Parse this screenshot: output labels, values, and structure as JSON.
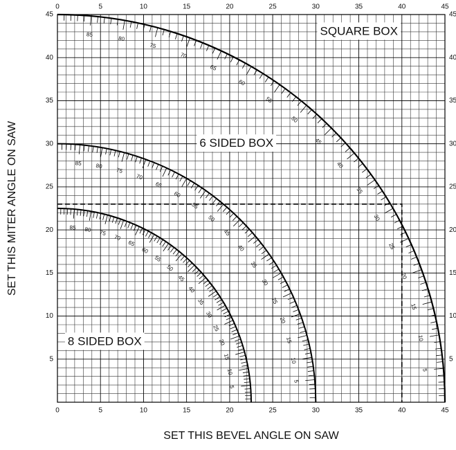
{
  "chart_data": {
    "type": "arc",
    "xlabel": "SET THIS BEVEL ANGLE ON SAW",
    "ylabel": "SET THIS MITER ANGLE ON SAW",
    "xlim": [
      0,
      45
    ],
    "ylim": [
      0,
      45
    ],
    "xticks": [
      0,
      5,
      10,
      15,
      20,
      25,
      30,
      35,
      40,
      45
    ],
    "yticks": [
      5,
      10,
      15,
      20,
      25,
      30,
      35,
      40,
      45
    ],
    "grid": true,
    "minor_step": 1,
    "color": "#000000",
    "series": [
      {
        "name": "SQUARE BOX",
        "radius": 45,
        "angles": [
          85,
          80,
          75,
          70,
          65,
          60,
          55,
          50,
          45,
          40,
          35,
          30,
          25,
          20,
          15,
          10,
          5
        ]
      },
      {
        "name": "6 SIDED BOX",
        "radius": 30,
        "angles": [
          85,
          80,
          75,
          70,
          65,
          60,
          55,
          50,
          45,
          40,
          35,
          30,
          25,
          20,
          15,
          10,
          5
        ]
      },
      {
        "name": "8 SIDED BOX",
        "radius": 22.5,
        "angles": [
          85,
          80,
          75,
          70,
          65,
          60,
          55,
          50,
          45,
          40,
          35,
          30,
          25,
          20,
          15,
          10,
          5
        ]
      }
    ],
    "guide": {
      "x": 40,
      "y": 23
    }
  }
}
